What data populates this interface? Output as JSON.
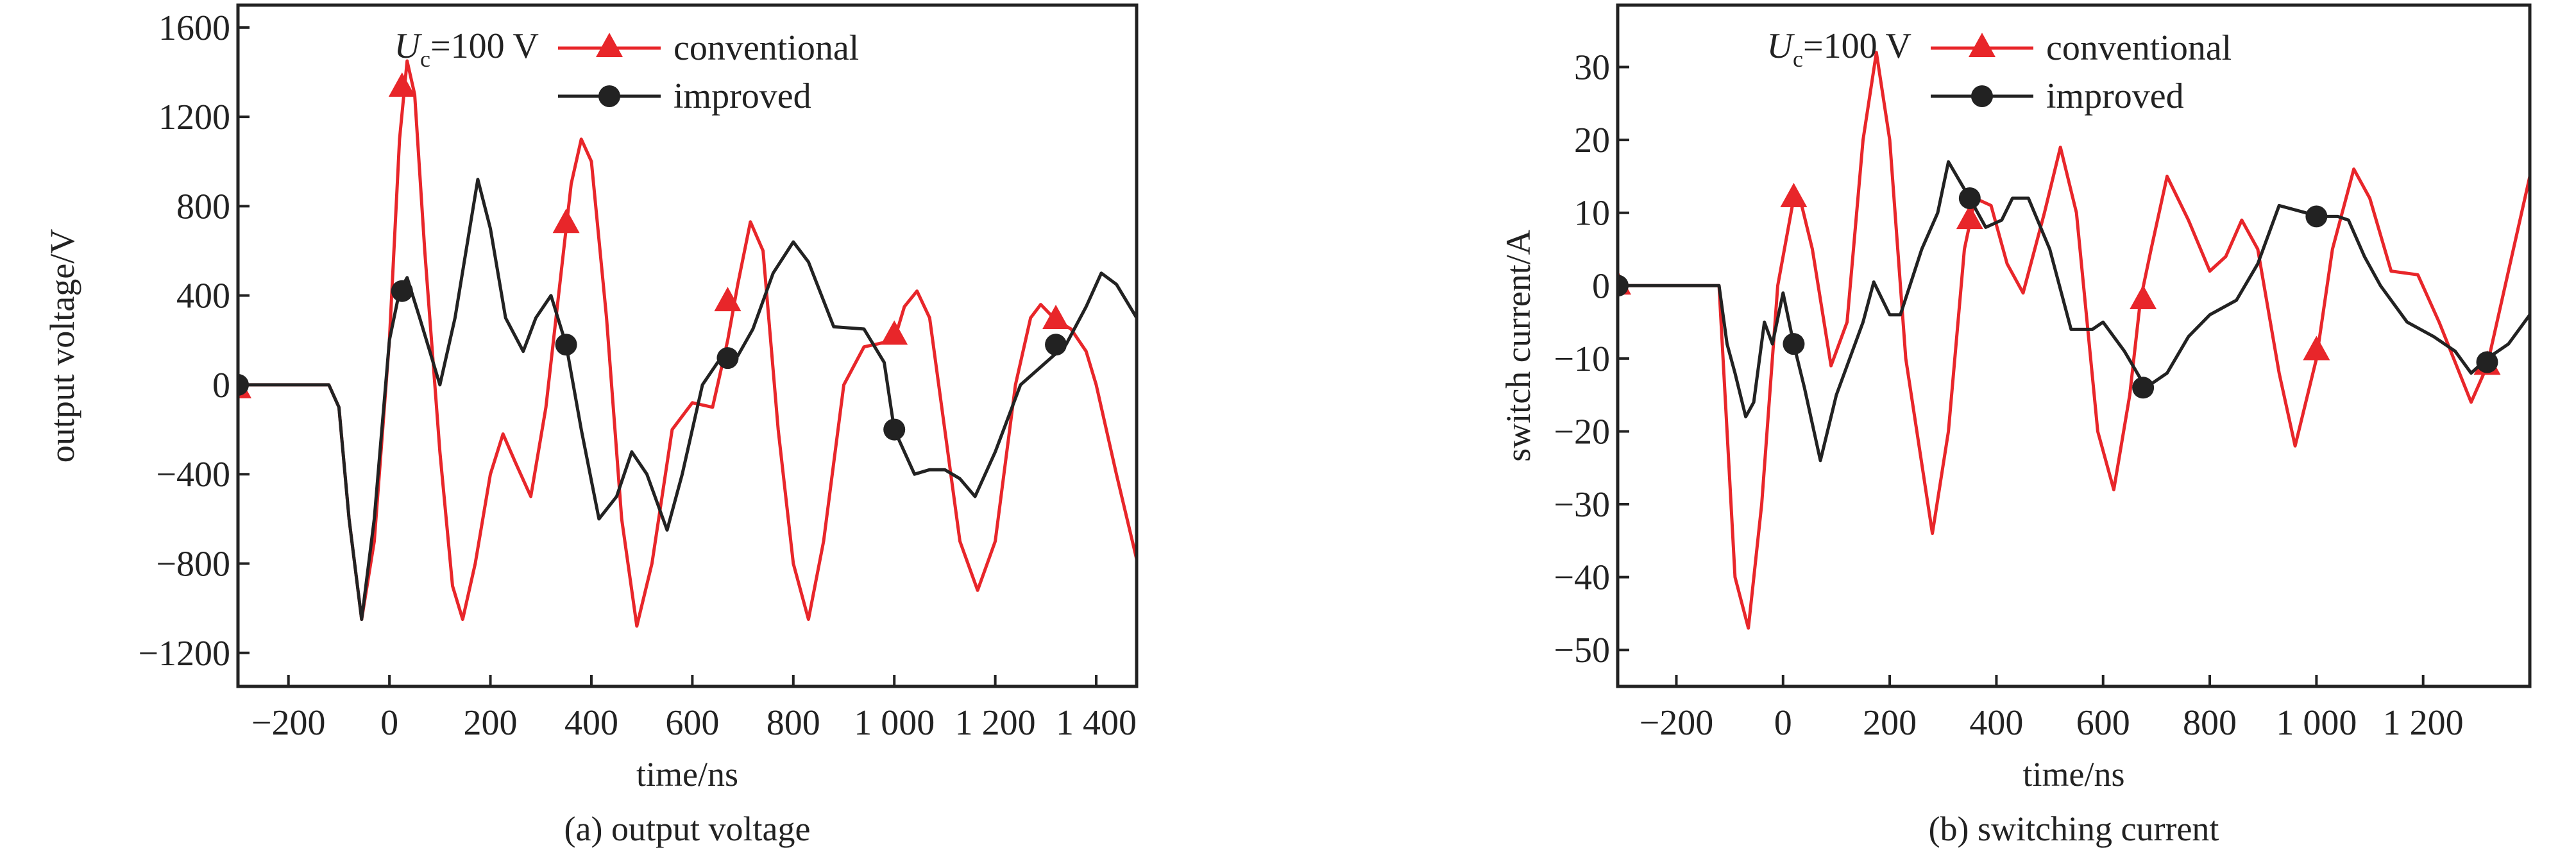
{
  "colors": {
    "conventional": "#e8262a",
    "improved": "#222222",
    "axis": "#222222"
  },
  "chart_data": [
    {
      "type": "line",
      "caption": "(a) output voltage",
      "xlabel": "time/ns",
      "ylabel": "output voltage/V",
      "xlim": [
        -300,
        1480
      ],
      "ylim": [
        -1350,
        1700
      ],
      "xticks": [
        -200,
        0,
        200,
        400,
        600,
        800,
        1000,
        1200,
        1400
      ],
      "xtick_labels": [
        "−200",
        "0",
        "200",
        "400",
        "600",
        "800",
        "1 000",
        "1 200",
        "1 400"
      ],
      "yticks": [
        1600,
        1200,
        800,
        400,
        0,
        -400,
        -800,
        -1200
      ],
      "ytick_labels": [
        "1600",
        "1200",
        "800",
        "400",
        "0",
        "−400",
        "−800",
        "−1200"
      ],
      "grid": false,
      "legend": {
        "placement": "top-right",
        "annotation_main": "U",
        "annotation_sub": "c",
        "annotation_rest": "=100 V"
      },
      "series": [
        {
          "name": "conventional",
          "marker": "triangle",
          "x": [
            -300,
            -120,
            -100,
            -80,
            -55,
            -30,
            0,
            20,
            35,
            50,
            70,
            100,
            125,
            145,
            170,
            200,
            225,
            250,
            280,
            310,
            340,
            360,
            380,
            400,
            430,
            460,
            490,
            520,
            560,
            600,
            640,
            670,
            690,
            715,
            740,
            770,
            800,
            830,
            860,
            900,
            940,
            960,
            1000,
            1020,
            1045,
            1070,
            1100,
            1130,
            1165,
            1200,
            1240,
            1270,
            1290,
            1320,
            1350,
            1380,
            1400,
            1440,
            1480
          ],
          "y": [
            0,
            0,
            -100,
            -600,
            -1050,
            -700,
            200,
            1100,
            1450,
            1300,
            600,
            -300,
            -900,
            -1050,
            -800,
            -400,
            -220,
            -350,
            -500,
            -100,
            500,
            900,
            1100,
            1000,
            300,
            -600,
            -1080,
            -800,
            -200,
            -80,
            -100,
            200,
            450,
            730,
            600,
            -200,
            -800,
            -1050,
            -700,
            0,
            170,
            180,
            200,
            350,
            420,
            300,
            -200,
            -700,
            -920,
            -700,
            0,
            300,
            360,
            290,
            250,
            150,
            0,
            -400,
            -780
          ],
          "markers_x": [
            -300,
            25,
            350,
            670,
            1000,
            1320
          ],
          "markers_y": [
            -20,
            1330,
            720,
            370,
            220,
            290
          ]
        },
        {
          "name": "improved",
          "marker": "circle",
          "x": [
            -300,
            -120,
            -100,
            -80,
            -55,
            -30,
            0,
            20,
            35,
            60,
            100,
            130,
            175,
            200,
            230,
            265,
            290,
            320,
            350,
            380,
            415,
            450,
            480,
            510,
            550,
            580,
            620,
            650,
            690,
            720,
            760,
            800,
            830,
            880,
            940,
            980,
            1000,
            1040,
            1070,
            1100,
            1130,
            1160,
            1200,
            1250,
            1300,
            1340,
            1380,
            1410,
            1440,
            1480
          ],
          "y": [
            0,
            0,
            -100,
            -600,
            -1050,
            -600,
            200,
            420,
            480,
            300,
            0,
            300,
            920,
            700,
            300,
            150,
            300,
            400,
            180,
            -200,
            -600,
            -500,
            -300,
            -400,
            -650,
            -400,
            0,
            100,
            130,
            250,
            500,
            640,
            550,
            260,
            250,
            100,
            -200,
            -400,
            -380,
            -380,
            -420,
            -500,
            -300,
            0,
            100,
            180,
            350,
            500,
            450,
            300
          ],
          "markers_x": [
            -300,
            25,
            350,
            670,
            1000,
            1320
          ],
          "markers_y": [
            0,
            420,
            180,
            120,
            -200,
            180
          ]
        }
      ]
    },
    {
      "type": "line",
      "caption": "(b) switching current",
      "xlabel": "time/ns",
      "ylabel": "switch current/A",
      "xlim": [
        -310,
        1400
      ],
      "ylim": [
        -55,
        38.5
      ],
      "xticks": [
        -200,
        0,
        200,
        400,
        600,
        800,
        1000,
        1200
      ],
      "xtick_labels": [
        "−200",
        "0",
        "200",
        "400",
        "600",
        "800",
        "1 000",
        "1 200"
      ],
      "yticks": [
        30,
        20,
        10,
        0,
        -10,
        -20,
        -30,
        -40,
        -50
      ],
      "ytick_labels": [
        "30",
        "20",
        "10",
        "0",
        "−10",
        "−20",
        "−30",
        "−40",
        "−50"
      ],
      "grid": false,
      "legend": {
        "placement": "top-right",
        "annotation_main": "U",
        "annotation_sub": "c",
        "annotation_rest": "=100 V"
      },
      "series": [
        {
          "name": "conventional",
          "marker": "triangle",
          "x": [
            -310,
            -120,
            -105,
            -90,
            -65,
            -40,
            -10,
            20,
            35,
            55,
            90,
            120,
            150,
            175,
            200,
            230,
            280,
            310,
            340,
            360,
            390,
            420,
            450,
            490,
            520,
            550,
            590,
            620,
            650,
            670,
            690,
            720,
            760,
            800,
            830,
            860,
            890,
            930,
            960,
            1000,
            1030,
            1070,
            1100,
            1140,
            1190,
            1230,
            1290,
            1320,
            1360,
            1400
          ],
          "y": [
            0,
            0,
            -20,
            -40,
            -47,
            -30,
            0,
            12,
            11,
            5,
            -11,
            -5,
            20,
            32,
            20,
            -10,
            -34,
            -20,
            5,
            12,
            11,
            3,
            -1,
            10,
            19,
            10,
            -20,
            -28,
            -15,
            -2,
            5,
            15,
            9,
            2,
            4,
            9,
            5,
            -12,
            -22,
            -10,
            5,
            16,
            12,
            2,
            1.5,
            -5,
            -16,
            -11,
            2,
            15
          ],
          "markers_x": [
            -310,
            20,
            350,
            675,
            1000,
            1320
          ],
          "markers_y": [
            0,
            12,
            9,
            -2,
            -9,
            -11
          ]
        },
        {
          "name": "improved",
          "marker": "circle",
          "x": [
            -310,
            -120,
            -105,
            -90,
            -70,
            -55,
            -35,
            -20,
            0,
            20,
            40,
            70,
            100,
            150,
            170,
            200,
            220,
            260,
            290,
            310,
            350,
            380,
            410,
            430,
            460,
            500,
            540,
            580,
            600,
            640,
            680,
            720,
            760,
            800,
            850,
            890,
            930,
            980,
            1000,
            1040,
            1060,
            1090,
            1120,
            1170,
            1220,
            1260,
            1290,
            1320,
            1360,
            1400
          ],
          "y": [
            0,
            0,
            -8,
            -12,
            -18,
            -16,
            -5,
            -8,
            -1,
            -8,
            -14,
            -24,
            -15,
            -5,
            0.5,
            -4,
            -4,
            5,
            10,
            17,
            12,
            8,
            9,
            12,
            12,
            5,
            -6,
            -6,
            -5,
            -9,
            -14,
            -12,
            -7,
            -4,
            -2,
            3,
            11,
            10,
            9.5,
            9.5,
            9,
            4,
            0,
            -5,
            -7,
            -9,
            -12,
            -10,
            -8,
            -4
          ],
          "markers_x": [
            -310,
            20,
            350,
            675,
            1000,
            1320
          ],
          "markers_y": [
            0,
            -8,
            12,
            -14,
            9.5,
            -10.5
          ]
        }
      ]
    }
  ]
}
